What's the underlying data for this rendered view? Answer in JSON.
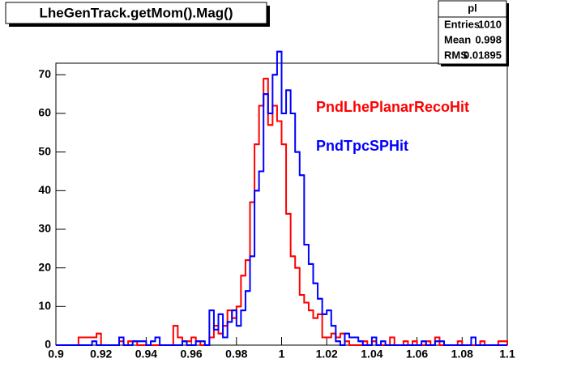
{
  "chart_data": {
    "type": "histogram",
    "title": "LheGenTrack.getMom().Mag()",
    "xlim": [
      0.9,
      1.1
    ],
    "xticks": [
      0.9,
      0.92,
      0.94,
      0.96,
      0.98,
      1,
      1.02,
      1.04,
      1.06,
      1.08,
      1.1
    ],
    "ylim": [
      0,
      73
    ],
    "yticks": [
      0,
      10,
      20,
      30,
      40,
      50,
      60,
      70
    ],
    "series": [
      {
        "name": "PndLhePlanarRecoHit",
        "color": "#ff0000",
        "values": [
          0,
          0,
          0,
          0,
          0,
          2,
          2,
          2,
          2,
          3,
          0,
          0,
          0,
          0,
          1,
          0,
          1,
          1,
          0,
          0,
          0,
          0,
          0,
          0,
          0,
          0,
          5,
          2,
          1,
          1,
          2,
          1,
          0,
          0,
          2,
          5,
          3,
          5,
          9,
          7,
          10,
          18,
          22,
          37,
          52,
          62,
          69,
          57,
          62,
          58,
          52,
          34,
          23,
          20,
          13,
          11,
          9,
          7,
          8,
          2,
          2,
          3,
          2,
          3,
          1,
          0,
          0,
          0,
          1,
          0,
          1,
          0,
          0,
          0,
          2,
          0,
          0,
          1,
          0,
          1,
          0,
          0,
          1,
          0,
          2,
          0,
          0,
          0,
          0,
          1,
          0,
          0,
          0,
          0,
          1,
          0,
          0,
          0,
          1,
          1
        ]
      },
      {
        "name": "PndTpcSPHit",
        "color": "#0000ff",
        "values": [
          0,
          0,
          0,
          0,
          0,
          0,
          0,
          0,
          1,
          0,
          0,
          0,
          0,
          0,
          2,
          0,
          0,
          1,
          1,
          1,
          0,
          1,
          2,
          0,
          0,
          0,
          0,
          0,
          1,
          0,
          0,
          1,
          1,
          0,
          9,
          4,
          8,
          2,
          6,
          9,
          5,
          9,
          14,
          23,
          40,
          45,
          65,
          60,
          70,
          76,
          60,
          66,
          60,
          50,
          44,
          26,
          21,
          16,
          12,
          8,
          9,
          5,
          1,
          0,
          3,
          2,
          2,
          1,
          0,
          0,
          2,
          0,
          1,
          0,
          0,
          0,
          0,
          0,
          0,
          0,
          0,
          1,
          0,
          0,
          1,
          1,
          0,
          0,
          0,
          0,
          0,
          0,
          2,
          0,
          0,
          0,
          0,
          0,
          0,
          0
        ]
      }
    ],
    "stats": {
      "title": "pl",
      "rows": [
        {
          "label": "Entries",
          "value": 1010
        },
        {
          "label": "Mean",
          "value": 0.998
        },
        {
          "label": "RMS",
          "value": 0.01895
        }
      ]
    }
  }
}
